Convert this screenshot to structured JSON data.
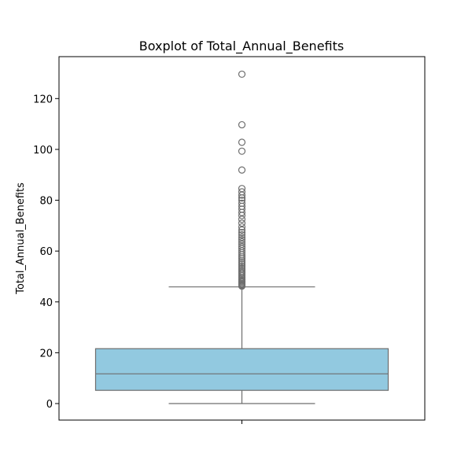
{
  "chart_data": {
    "type": "box",
    "title": "Boxplot of Total_Annual_Benefits",
    "xlabel": "",
    "ylabel": "Total_Annual_Benefits",
    "ylim": [
      -6.5,
      136.5
    ],
    "yticks": [
      0,
      20,
      40,
      60,
      80,
      100,
      120
    ],
    "grid": false,
    "legend": "none",
    "box": {
      "min": 0,
      "q1": 5.2,
      "median": 11.7,
      "q3": 21.6,
      "whisker_low": 0,
      "whisker_high": 45.9
    },
    "outliers": [
      46.2,
      46.5,
      46.9,
      47.3,
      47.8,
      48.2,
      48.7,
      49.2,
      49.7,
      50.3,
      50.9,
      51.5,
      52.1,
      52.8,
      53.4,
      54.1,
      54.8,
      55.5,
      56.2,
      57.0,
      57.7,
      58.5,
      59.3,
      60.1,
      61.0,
      61.8,
      62.7,
      63.6,
      64.5,
      65.4,
      66.4,
      67.3,
      68.3,
      69.5,
      71.0,
      72.5,
      74.0,
      75.2,
      76.5,
      77.6,
      78.8,
      80.0,
      80.9,
      82.0,
      83.3,
      84.6,
      91.9,
      99.3,
      102.8,
      109.7,
      129.6
    ],
    "colors": {
      "box_fill": "#92c9e0",
      "line": "#6e6e6e"
    }
  }
}
